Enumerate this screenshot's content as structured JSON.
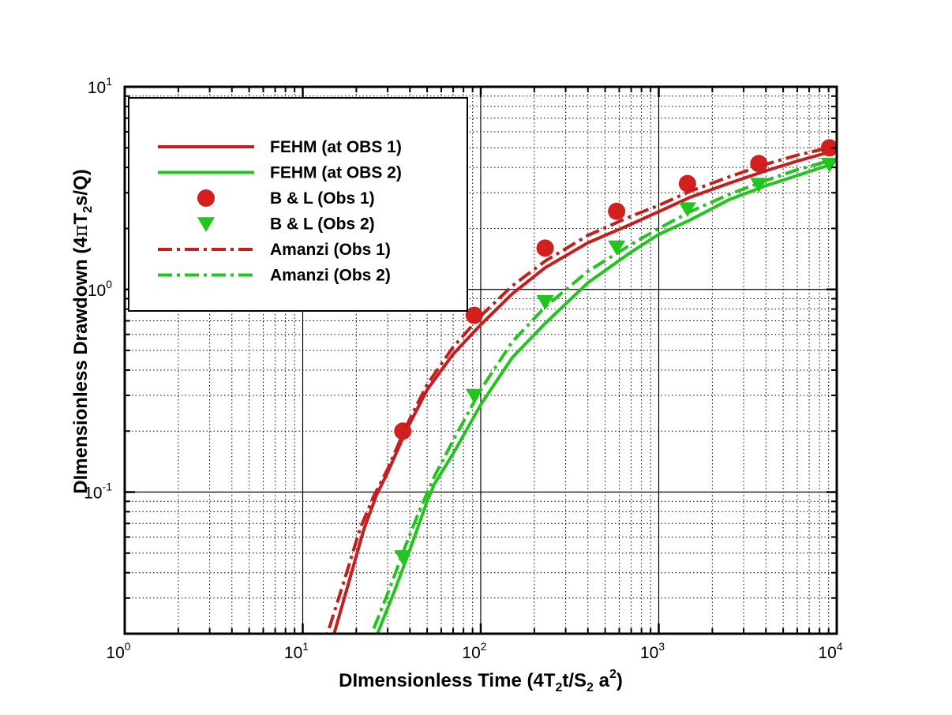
{
  "chart_data": {
    "type": "line",
    "x_scale": "log",
    "y_scale": "log",
    "xlim": [
      1,
      10000
    ],
    "ylim": [
      0.02,
      10
    ],
    "grid": true,
    "legend_position": "top-left",
    "xlabel": {
      "a": "DImensionless Time (4T",
      "b": "2",
      "c": "t/S",
      "d": "2",
      "e": " a",
      "f": "2",
      "g": ")"
    },
    "ylabel": {
      "a": "DImensionless Drawdown (4",
      "b": "π",
      "c": "T",
      "d": "2",
      "e": "s/Q)"
    },
    "x_ticks": [
      {
        "value": 1,
        "base": "10",
        "exp": "0"
      },
      {
        "value": 10,
        "base": "10",
        "exp": "1"
      },
      {
        "value": 100,
        "base": "10",
        "exp": "2"
      },
      {
        "value": 1000,
        "base": "10",
        "exp": "3"
      },
      {
        "value": 10000,
        "base": "10",
        "exp": "4"
      }
    ],
    "y_ticks": [
      {
        "value": 0.1,
        "base": "10",
        "exp": "-1"
      },
      {
        "value": 1,
        "base": "10",
        "exp": "0"
      },
      {
        "value": 10,
        "base": "10",
        "exp": "1"
      }
    ],
    "series": [
      {
        "name": "FEHM (at OBS 1)",
        "style": "solid",
        "color": "#c41e1e",
        "x": [
          13.5,
          15,
          18,
          22,
          26,
          30,
          38,
          50,
          70,
          100,
          150,
          230,
          400,
          700,
          1000,
          1500,
          2500,
          4000,
          6000,
          9000
        ],
        "y": [
          0.016,
          0.02,
          0.035,
          0.065,
          0.097,
          0.125,
          0.2,
          0.32,
          0.48,
          0.67,
          0.95,
          1.28,
          1.7,
          2.1,
          2.42,
          2.85,
          3.35,
          3.85,
          4.3,
          4.75
        ]
      },
      {
        "name": "FEHM (at OBS 2)",
        "style": "solid",
        "color": "#22c41e",
        "x": [
          24.5,
          28,
          33,
          40,
          50,
          55,
          70,
          100,
          150,
          230,
          400,
          700,
          1000,
          1500,
          2500,
          4000,
          6000,
          9000
        ],
        "y": [
          0.017,
          0.023,
          0.033,
          0.052,
          0.09,
          0.11,
          0.155,
          0.27,
          0.46,
          0.68,
          1.08,
          1.53,
          1.87,
          2.2,
          2.78,
          3.25,
          3.65,
          4.1
        ]
      },
      {
        "name": "B & L (Obs 1)",
        "style": "marker-circle",
        "color": "#d41f1f",
        "x": [
          36.5,
          92,
          230,
          580,
          1450,
          3650,
          9100
        ],
        "y": [
          0.2,
          0.745,
          1.6,
          2.43,
          3.33,
          4.18,
          5.0
        ]
      },
      {
        "name": "B & L (Obs 2)",
        "style": "marker-triangle",
        "color": "#22c41e",
        "x": [
          36.5,
          92,
          230,
          580,
          1450,
          3650,
          9100
        ],
        "y": [
          0.048,
          0.3,
          0.87,
          1.62,
          2.5,
          3.3,
          4.15
        ]
      },
      {
        "name": "Amanzi (Obs 1)",
        "style": "dashdot",
        "color": "#c41e1e",
        "x": [
          12.5,
          14,
          17,
          21,
          25,
          30,
          38,
          50,
          70,
          100,
          150,
          230,
          400,
          700,
          1000,
          1500,
          2500,
          4000,
          6000,
          9000
        ],
        "y": [
          0.016,
          0.021,
          0.036,
          0.066,
          0.095,
          0.13,
          0.21,
          0.34,
          0.52,
          0.74,
          1.04,
          1.38,
          1.85,
          2.3,
          2.6,
          3.05,
          3.6,
          4.15,
          4.6,
          5.0
        ]
      },
      {
        "name": "Amanzi (Obs 2)",
        "style": "dashdot",
        "color": "#22c41e",
        "x": [
          22,
          26,
          31,
          38,
          45,
          55,
          70,
          100,
          150,
          230,
          400,
          700,
          1000,
          1500,
          2500,
          4000,
          6000,
          9000
        ],
        "y": [
          0.016,
          0.023,
          0.034,
          0.055,
          0.08,
          0.12,
          0.18,
          0.32,
          0.55,
          0.82,
          1.23,
          1.67,
          2.0,
          2.42,
          2.95,
          3.45,
          3.9,
          4.3
        ]
      }
    ]
  }
}
